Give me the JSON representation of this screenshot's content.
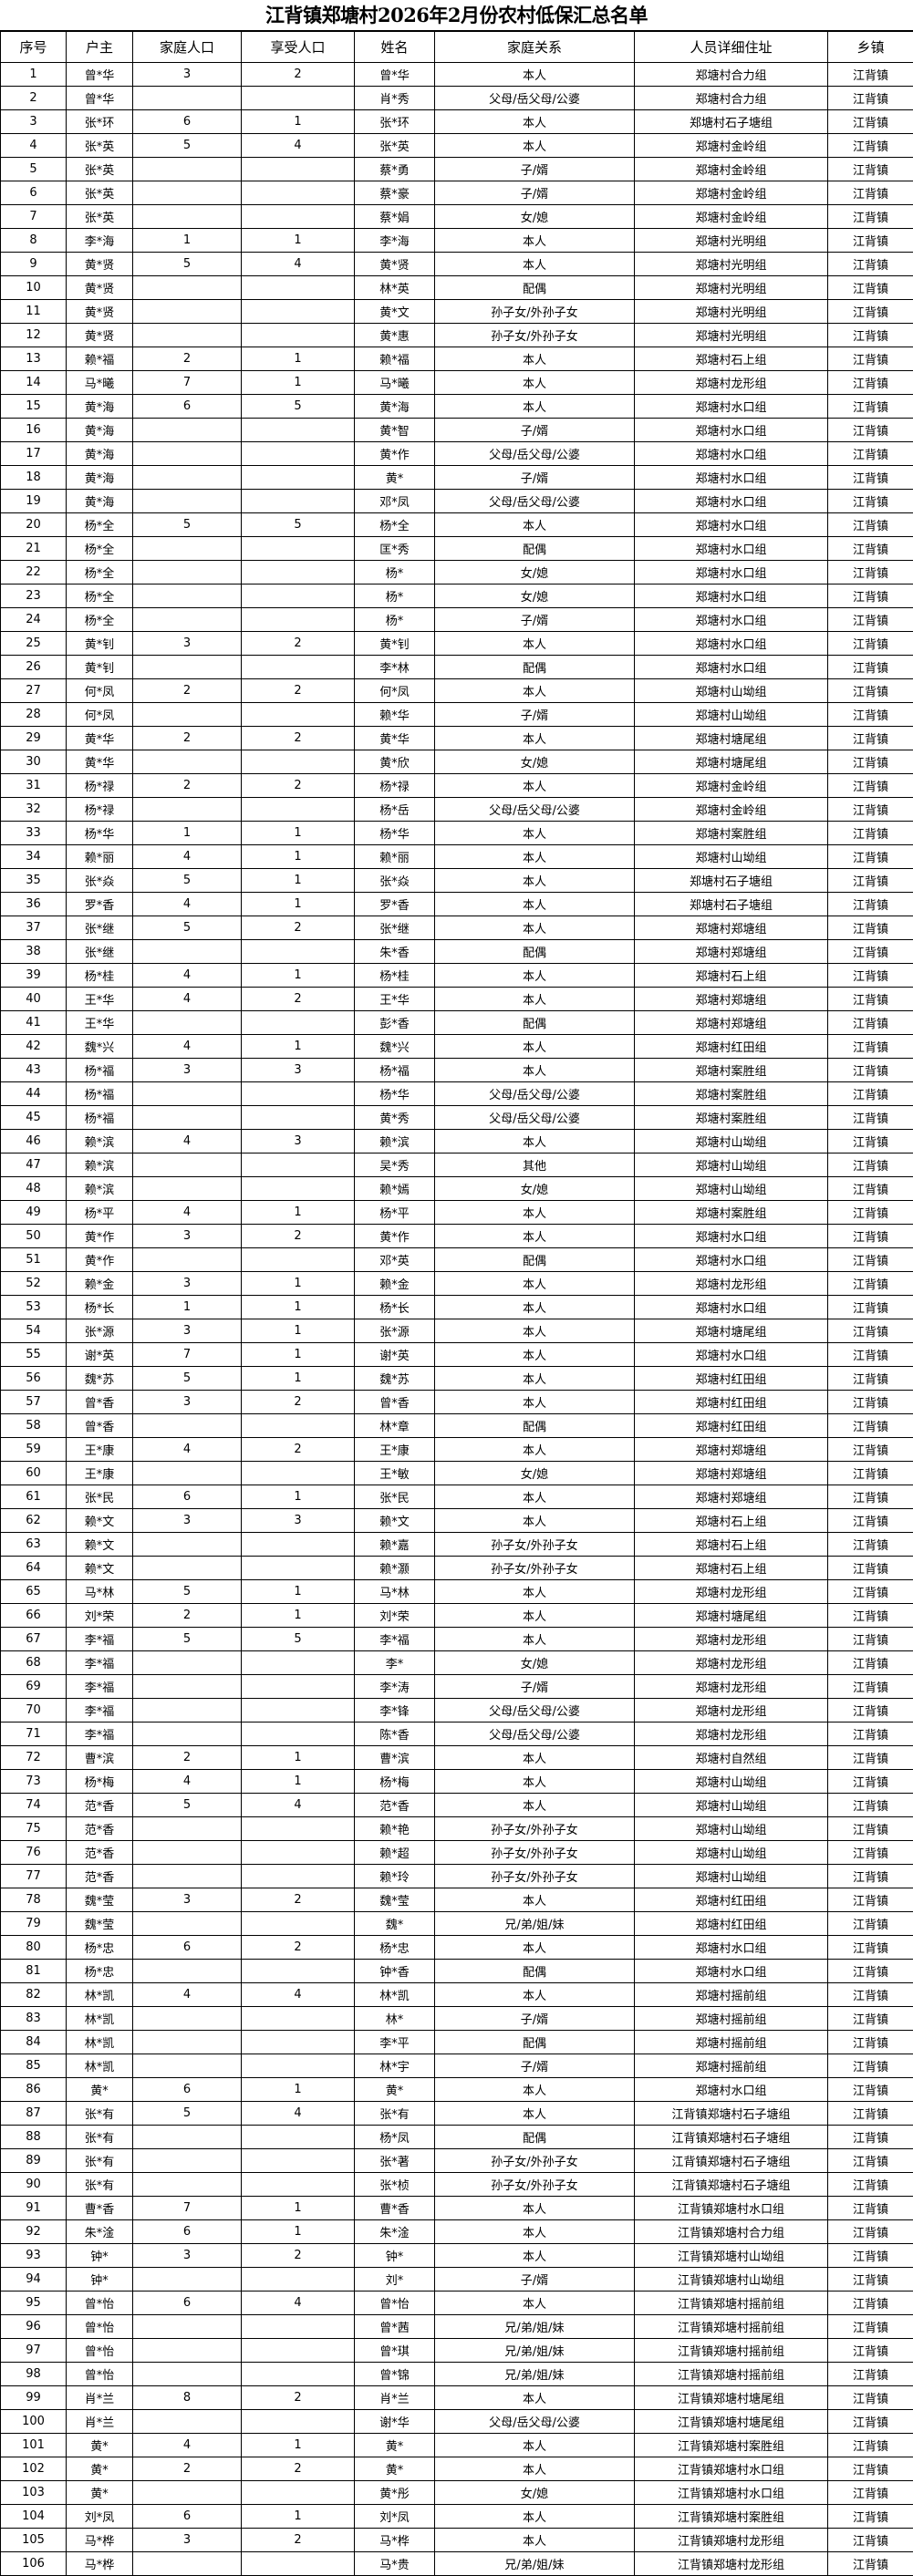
{
  "title": "江背镇郑塘村2026年2月份农村低保汇总名单",
  "columns": [
    "序号",
    "户主",
    "家庭人口",
    "享受人口",
    "姓名",
    "家庭关系",
    "人员详细住址",
    "乡镇"
  ],
  "rows": [
    [
      "1",
      "曾*华",
      "3",
      "2",
      "曾*华",
      "本人",
      "郑塘村合力组",
      "江背镇"
    ],
    [
      "2",
      "曾*华",
      "",
      "",
      "肖*秀",
      "父母/岳父母/公婆",
      "郑塘村合力组",
      "江背镇"
    ],
    [
      "3",
      "张*环",
      "6",
      "1",
      "张*环",
      "本人",
      "郑塘村石子塘组",
      "江背镇"
    ],
    [
      "4",
      "张*英",
      "5",
      "4",
      "张*英",
      "本人",
      "郑塘村金岭组",
      "江背镇"
    ],
    [
      "5",
      "张*英",
      "",
      "",
      "蔡*勇",
      "子/婿",
      "郑塘村金岭组",
      "江背镇"
    ],
    [
      "6",
      "张*英",
      "",
      "",
      "蔡*豪",
      "子/婿",
      "郑塘村金岭组",
      "江背镇"
    ],
    [
      "7",
      "张*英",
      "",
      "",
      "蔡*娟",
      "女/媳",
      "郑塘村金岭组",
      "江背镇"
    ],
    [
      "8",
      "李*海",
      "1",
      "1",
      "李*海",
      "本人",
      "郑塘村光明组",
      "江背镇"
    ],
    [
      "9",
      "黄*贤",
      "5",
      "4",
      "黄*贤",
      "本人",
      "郑塘村光明组",
      "江背镇"
    ],
    [
      "10",
      "黄*贤",
      "",
      "",
      "林*英",
      "配偶",
      "郑塘村光明组",
      "江背镇"
    ],
    [
      "11",
      "黄*贤",
      "",
      "",
      "黄*文",
      "孙子女/外孙子女",
      "郑塘村光明组",
      "江背镇"
    ],
    [
      "12",
      "黄*贤",
      "",
      "",
      "黄*惠",
      "孙子女/外孙子女",
      "郑塘村光明组",
      "江背镇"
    ],
    [
      "13",
      "赖*福",
      "2",
      "1",
      "赖*福",
      "本人",
      "郑塘村石上组",
      "江背镇"
    ],
    [
      "14",
      "马*曦",
      "7",
      "1",
      "马*曦",
      "本人",
      "郑塘村龙形组",
      "江背镇"
    ],
    [
      "15",
      "黄*海",
      "6",
      "5",
      "黄*海",
      "本人",
      "郑塘村水口组",
      "江背镇"
    ],
    [
      "16",
      "黄*海",
      "",
      "",
      "黄*智",
      "子/婿",
      "郑塘村水口组",
      "江背镇"
    ],
    [
      "17",
      "黄*海",
      "",
      "",
      "黄*作",
      "父母/岳父母/公婆",
      "郑塘村水口组",
      "江背镇"
    ],
    [
      "18",
      "黄*海",
      "",
      "",
      "黄*",
      "子/婿",
      "郑塘村水口组",
      "江背镇"
    ],
    [
      "19",
      "黄*海",
      "",
      "",
      "邓*凤",
      "父母/岳父母/公婆",
      "郑塘村水口组",
      "江背镇"
    ],
    [
      "20",
      "杨*全",
      "5",
      "5",
      "杨*全",
      "本人",
      "郑塘村水口组",
      "江背镇"
    ],
    [
      "21",
      "杨*全",
      "",
      "",
      "匡*秀",
      "配偶",
      "郑塘村水口组",
      "江背镇"
    ],
    [
      "22",
      "杨*全",
      "",
      "",
      "杨*",
      "女/媳",
      "郑塘村水口组",
      "江背镇"
    ],
    [
      "23",
      "杨*全",
      "",
      "",
      "杨*",
      "女/媳",
      "郑塘村水口组",
      "江背镇"
    ],
    [
      "24",
      "杨*全",
      "",
      "",
      "杨*",
      "子/婿",
      "郑塘村水口组",
      "江背镇"
    ],
    [
      "25",
      "黄*钊",
      "3",
      "2",
      "黄*钊",
      "本人",
      "郑塘村水口组",
      "江背镇"
    ],
    [
      "26",
      "黄*钊",
      "",
      "",
      "李*林",
      "配偶",
      "郑塘村水口组",
      "江背镇"
    ],
    [
      "27",
      "何*凤",
      "2",
      "2",
      "何*凤",
      "本人",
      "郑塘村山坳组",
      "江背镇"
    ],
    [
      "28",
      "何*凤",
      "",
      "",
      "赖*华",
      "子/婿",
      "郑塘村山坳组",
      "江背镇"
    ],
    [
      "29",
      "黄*华",
      "2",
      "2",
      "黄*华",
      "本人",
      "郑塘村塘尾组",
      "江背镇"
    ],
    [
      "30",
      "黄*华",
      "",
      "",
      "黄*欣",
      "女/媳",
      "郑塘村塘尾组",
      "江背镇"
    ],
    [
      "31",
      "杨*禄",
      "2",
      "2",
      "杨*禄",
      "本人",
      "郑塘村金岭组",
      "江背镇"
    ],
    [
      "32",
      "杨*禄",
      "",
      "",
      "杨*岳",
      "父母/岳父母/公婆",
      "郑塘村金岭组",
      "江背镇"
    ],
    [
      "33",
      "杨*华",
      "1",
      "1",
      "杨*华",
      "本人",
      "郑塘村案胜组",
      "江背镇"
    ],
    [
      "34",
      "赖*丽",
      "4",
      "1",
      "赖*丽",
      "本人",
      "郑塘村山坳组",
      "江背镇"
    ],
    [
      "35",
      "张*焱",
      "5",
      "1",
      "张*焱",
      "本人",
      "郑塘村石子塘组",
      "江背镇"
    ],
    [
      "36",
      "罗*香",
      "4",
      "1",
      "罗*香",
      "本人",
      "郑塘村石子塘组",
      "江背镇"
    ],
    [
      "37",
      "张*继",
      "5",
      "2",
      "张*继",
      "本人",
      "郑塘村郑塘组",
      "江背镇"
    ],
    [
      "38",
      "张*继",
      "",
      "",
      "朱*香",
      "配偶",
      "郑塘村郑塘组",
      "江背镇"
    ],
    [
      "39",
      "杨*桂",
      "4",
      "1",
      "杨*桂",
      "本人",
      "郑塘村石上组",
      "江背镇"
    ],
    [
      "40",
      "王*华",
      "4",
      "2",
      "王*华",
      "本人",
      "郑塘村郑塘组",
      "江背镇"
    ],
    [
      "41",
      "王*华",
      "",
      "",
      "彭*香",
      "配偶",
      "郑塘村郑塘组",
      "江背镇"
    ],
    [
      "42",
      "魏*兴",
      "4",
      "1",
      "魏*兴",
      "本人",
      "郑塘村红田组",
      "江背镇"
    ],
    [
      "43",
      "杨*福",
      "3",
      "3",
      "杨*福",
      "本人",
      "郑塘村案胜组",
      "江背镇"
    ],
    [
      "44",
      "杨*福",
      "",
      "",
      "杨*华",
      "父母/岳父母/公婆",
      "郑塘村案胜组",
      "江背镇"
    ],
    [
      "45",
      "杨*福",
      "",
      "",
      "黄*秀",
      "父母/岳父母/公婆",
      "郑塘村案胜组",
      "江背镇"
    ],
    [
      "46",
      "赖*滨",
      "4",
      "3",
      "赖*滨",
      "本人",
      "郑塘村山坳组",
      "江背镇"
    ],
    [
      "47",
      "赖*滨",
      "",
      "",
      "吴*秀",
      "其他",
      "郑塘村山坳组",
      "江背镇"
    ],
    [
      "48",
      "赖*滨",
      "",
      "",
      "赖*嫣",
      "女/媳",
      "郑塘村山坳组",
      "江背镇"
    ],
    [
      "49",
      "杨*平",
      "4",
      "1",
      "杨*平",
      "本人",
      "郑塘村案胜组",
      "江背镇"
    ],
    [
      "50",
      "黄*作",
      "3",
      "2",
      "黄*作",
      "本人",
      "郑塘村水口组",
      "江背镇"
    ],
    [
      "51",
      "黄*作",
      "",
      "",
      "邓*英",
      "配偶",
      "郑塘村水口组",
      "江背镇"
    ],
    [
      "52",
      "赖*金",
      "3",
      "1",
      "赖*金",
      "本人",
      "郑塘村龙形组",
      "江背镇"
    ],
    [
      "53",
      "杨*长",
      "1",
      "1",
      "杨*长",
      "本人",
      "郑塘村水口组",
      "江背镇"
    ],
    [
      "54",
      "张*源",
      "3",
      "1",
      "张*源",
      "本人",
      "郑塘村塘尾组",
      "江背镇"
    ],
    [
      "55",
      "谢*英",
      "7",
      "1",
      "谢*英",
      "本人",
      "郑塘村水口组",
      "江背镇"
    ],
    [
      "56",
      "魏*苏",
      "5",
      "1",
      "魏*苏",
      "本人",
      "郑塘村红田组",
      "江背镇"
    ],
    [
      "57",
      "曾*香",
      "3",
      "2",
      "曾*香",
      "本人",
      "郑塘村红田组",
      "江背镇"
    ],
    [
      "58",
      "曾*香",
      "",
      "",
      "林*章",
      "配偶",
      "郑塘村红田组",
      "江背镇"
    ],
    [
      "59",
      "王*康",
      "4",
      "2",
      "王*康",
      "本人",
      "郑塘村郑塘组",
      "江背镇"
    ],
    [
      "60",
      "王*康",
      "",
      "",
      "王*敏",
      "女/媳",
      "郑塘村郑塘组",
      "江背镇"
    ],
    [
      "61",
      "张*民",
      "6",
      "1",
      "张*民",
      "本人",
      "郑塘村郑塘组",
      "江背镇"
    ],
    [
      "62",
      "赖*文",
      "3",
      "3",
      "赖*文",
      "本人",
      "郑塘村石上组",
      "江背镇"
    ],
    [
      "63",
      "赖*文",
      "",
      "",
      "赖*嘉",
      "孙子女/外孙子女",
      "郑塘村石上组",
      "江背镇"
    ],
    [
      "64",
      "赖*文",
      "",
      "",
      "赖*灏",
      "孙子女/外孙子女",
      "郑塘村石上组",
      "江背镇"
    ],
    [
      "65",
      "马*林",
      "5",
      "1",
      "马*林",
      "本人",
      "郑塘村龙形组",
      "江背镇"
    ],
    [
      "66",
      "刘*荣",
      "2",
      "1",
      "刘*荣",
      "本人",
      "郑塘村塘尾组",
      "江背镇"
    ],
    [
      "67",
      "李*福",
      "5",
      "5",
      "李*福",
      "本人",
      "郑塘村龙形组",
      "江背镇"
    ],
    [
      "68",
      "李*福",
      "",
      "",
      "李*",
      "女/媳",
      "郑塘村龙形组",
      "江背镇"
    ],
    [
      "69",
      "李*福",
      "",
      "",
      "李*涛",
      "子/婿",
      "郑塘村龙形组",
      "江背镇"
    ],
    [
      "70",
      "李*福",
      "",
      "",
      "李*锋",
      "父母/岳父母/公婆",
      "郑塘村龙形组",
      "江背镇"
    ],
    [
      "71",
      "李*福",
      "",
      "",
      "陈*香",
      "父母/岳父母/公婆",
      "郑塘村龙形组",
      "江背镇"
    ],
    [
      "72",
      "曹*滨",
      "2",
      "1",
      "曹*滨",
      "本人",
      "郑塘村自然组",
      "江背镇"
    ],
    [
      "73",
      "杨*梅",
      "4",
      "1",
      "杨*梅",
      "本人",
      "郑塘村山坳组",
      "江背镇"
    ],
    [
      "74",
      "范*香",
      "5",
      "4",
      "范*香",
      "本人",
      "郑塘村山坳组",
      "江背镇"
    ],
    [
      "75",
      "范*香",
      "",
      "",
      "赖*艳",
      "孙子女/外孙子女",
      "郑塘村山坳组",
      "江背镇"
    ],
    [
      "76",
      "范*香",
      "",
      "",
      "赖*超",
      "孙子女/外孙子女",
      "郑塘村山坳组",
      "江背镇"
    ],
    [
      "77",
      "范*香",
      "",
      "",
      "赖*玲",
      "孙子女/外孙子女",
      "郑塘村山坳组",
      "江背镇"
    ],
    [
      "78",
      "魏*莹",
      "3",
      "2",
      "魏*莹",
      "本人",
      "郑塘村红田组",
      "江背镇"
    ],
    [
      "79",
      "魏*莹",
      "",
      "",
      "魏*",
      "兄/弟/姐/妹",
      "郑塘村红田组",
      "江背镇"
    ],
    [
      "80",
      "杨*忠",
      "6",
      "2",
      "杨*忠",
      "本人",
      "郑塘村水口组",
      "江背镇"
    ],
    [
      "81",
      "杨*忠",
      "",
      "",
      "钟*香",
      "配偶",
      "郑塘村水口组",
      "江背镇"
    ],
    [
      "82",
      "林*凯",
      "4",
      "4",
      "林*凯",
      "本人",
      "郑塘村摇前组",
      "江背镇"
    ],
    [
      "83",
      "林*凯",
      "",
      "",
      "林*",
      "子/婿",
      "郑塘村摇前组",
      "江背镇"
    ],
    [
      "84",
      "林*凯",
      "",
      "",
      "李*平",
      "配偶",
      "郑塘村摇前组",
      "江背镇"
    ],
    [
      "85",
      "林*凯",
      "",
      "",
      "林*宇",
      "子/婿",
      "郑塘村摇前组",
      "江背镇"
    ],
    [
      "86",
      "黄*",
      "6",
      "1",
      "黄*",
      "本人",
      "郑塘村水口组",
      "江背镇"
    ],
    [
      "87",
      "张*有",
      "5",
      "4",
      "张*有",
      "本人",
      "江背镇郑塘村石子塘组",
      "江背镇"
    ],
    [
      "88",
      "张*有",
      "",
      "",
      "杨*凤",
      "配偶",
      "江背镇郑塘村石子塘组",
      "江背镇"
    ],
    [
      "89",
      "张*有",
      "",
      "",
      "张*著",
      "孙子女/外孙子女",
      "江背镇郑塘村石子塘组",
      "江背镇"
    ],
    [
      "90",
      "张*有",
      "",
      "",
      "张*桢",
      "孙子女/外孙子女",
      "江背镇郑塘村石子塘组",
      "江背镇"
    ],
    [
      "91",
      "曹*香",
      "7",
      "1",
      "曹*香",
      "本人",
      "江背镇郑塘村水口组",
      "江背镇"
    ],
    [
      "92",
      "朱*淦",
      "6",
      "1",
      "朱*淦",
      "本人",
      "江背镇郑塘村合力组",
      "江背镇"
    ],
    [
      "93",
      "钟*",
      "3",
      "2",
      "钟*",
      "本人",
      "江背镇郑塘村山坳组",
      "江背镇"
    ],
    [
      "94",
      "钟*",
      "",
      "",
      "刘*",
      "子/婿",
      "江背镇郑塘村山坳组",
      "江背镇"
    ],
    [
      "95",
      "曾*怡",
      "6",
      "4",
      "曾*怡",
      "本人",
      "江背镇郑塘村摇前组",
      "江背镇"
    ],
    [
      "96",
      "曾*怡",
      "",
      "",
      "曾*茜",
      "兄/弟/姐/妹",
      "江背镇郑塘村摇前组",
      "江背镇"
    ],
    [
      "97",
      "曾*怡",
      "",
      "",
      "曾*琪",
      "兄/弟/姐/妹",
      "江背镇郑塘村摇前组",
      "江背镇"
    ],
    [
      "98",
      "曾*怡",
      "",
      "",
      "曾*锦",
      "兄/弟/姐/妹",
      "江背镇郑塘村摇前组",
      "江背镇"
    ],
    [
      "99",
      "肖*兰",
      "8",
      "2",
      "肖*兰",
      "本人",
      "江背镇郑塘村塘尾组",
      "江背镇"
    ],
    [
      "100",
      "肖*兰",
      "",
      "",
      "谢*华",
      "父母/岳父母/公婆",
      "江背镇郑塘村塘尾组",
      "江背镇"
    ],
    [
      "101",
      "黄*",
      "4",
      "1",
      "黄*",
      "本人",
      "江背镇郑塘村案胜组",
      "江背镇"
    ],
    [
      "102",
      "黄*",
      "2",
      "2",
      "黄*",
      "本人",
      "江背镇郑塘村水口组",
      "江背镇"
    ],
    [
      "103",
      "黄*",
      "",
      "",
      "黄*彤",
      "女/媳",
      "江背镇郑塘村水口组",
      "江背镇"
    ],
    [
      "104",
      "刘*凤",
      "6",
      "1",
      "刘*凤",
      "本人",
      "江背镇郑塘村案胜组",
      "江背镇"
    ],
    [
      "105",
      "马*桦",
      "3",
      "2",
      "马*桦",
      "本人",
      "江背镇郑塘村龙形组",
      "江背镇"
    ],
    [
      "106",
      "马*桦",
      "",
      "",
      "马*贵",
      "兄/弟/姐/妹",
      "江背镇郑塘村龙形组",
      "江背镇"
    ]
  ]
}
